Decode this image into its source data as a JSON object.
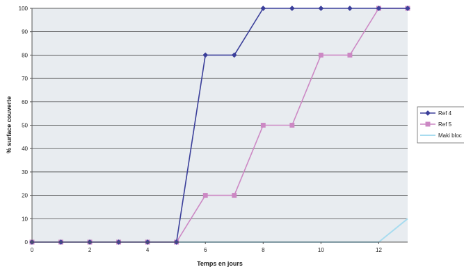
{
  "chart_data": {
    "type": "line",
    "title": "",
    "xlabel": "Temps en jours",
    "ylabel": "% surface couverte",
    "x": [
      0,
      1,
      2,
      3,
      4,
      5,
      6,
      7,
      8,
      9,
      10,
      11,
      12,
      13
    ],
    "xlim": [
      0,
      13
    ],
    "ylim": [
      0,
      100
    ],
    "x_ticks": [
      0,
      2,
      4,
      6,
      8,
      10,
      12
    ],
    "y_ticks": [
      0,
      10,
      20,
      30,
      40,
      50,
      60,
      70,
      80,
      90,
      100
    ],
    "x_tick_labels": [
      "0",
      "2",
      "4",
      "6",
      "8",
      "10",
      "12"
    ],
    "y_tick_labels": [
      "0",
      "10",
      "20",
      "30",
      "40",
      "50",
      "60",
      "70",
      "80",
      "90",
      "100"
    ],
    "grid": "horizontal",
    "legend": "right",
    "background_color": "#e8ecf0",
    "series": [
      {
        "name": "Ref 4",
        "color": "#3b3f9a",
        "marker": "diamond",
        "values": [
          0,
          0,
          0,
          0,
          0,
          0,
          80,
          80,
          100,
          100,
          100,
          100,
          100,
          100
        ]
      },
      {
        "name": "Ref 5",
        "color": "#cc88c4",
        "marker": "square",
        "values": [
          0,
          0,
          0,
          0,
          0,
          0,
          20,
          20,
          50,
          50,
          80,
          80,
          100,
          100
        ]
      },
      {
        "name": "Maki bloc",
        "color": "#a8dcef",
        "marker": "none",
        "values": [
          0,
          0,
          0,
          0,
          0,
          0,
          0,
          0,
          0,
          0,
          0,
          0,
          0,
          10
        ]
      }
    ]
  }
}
